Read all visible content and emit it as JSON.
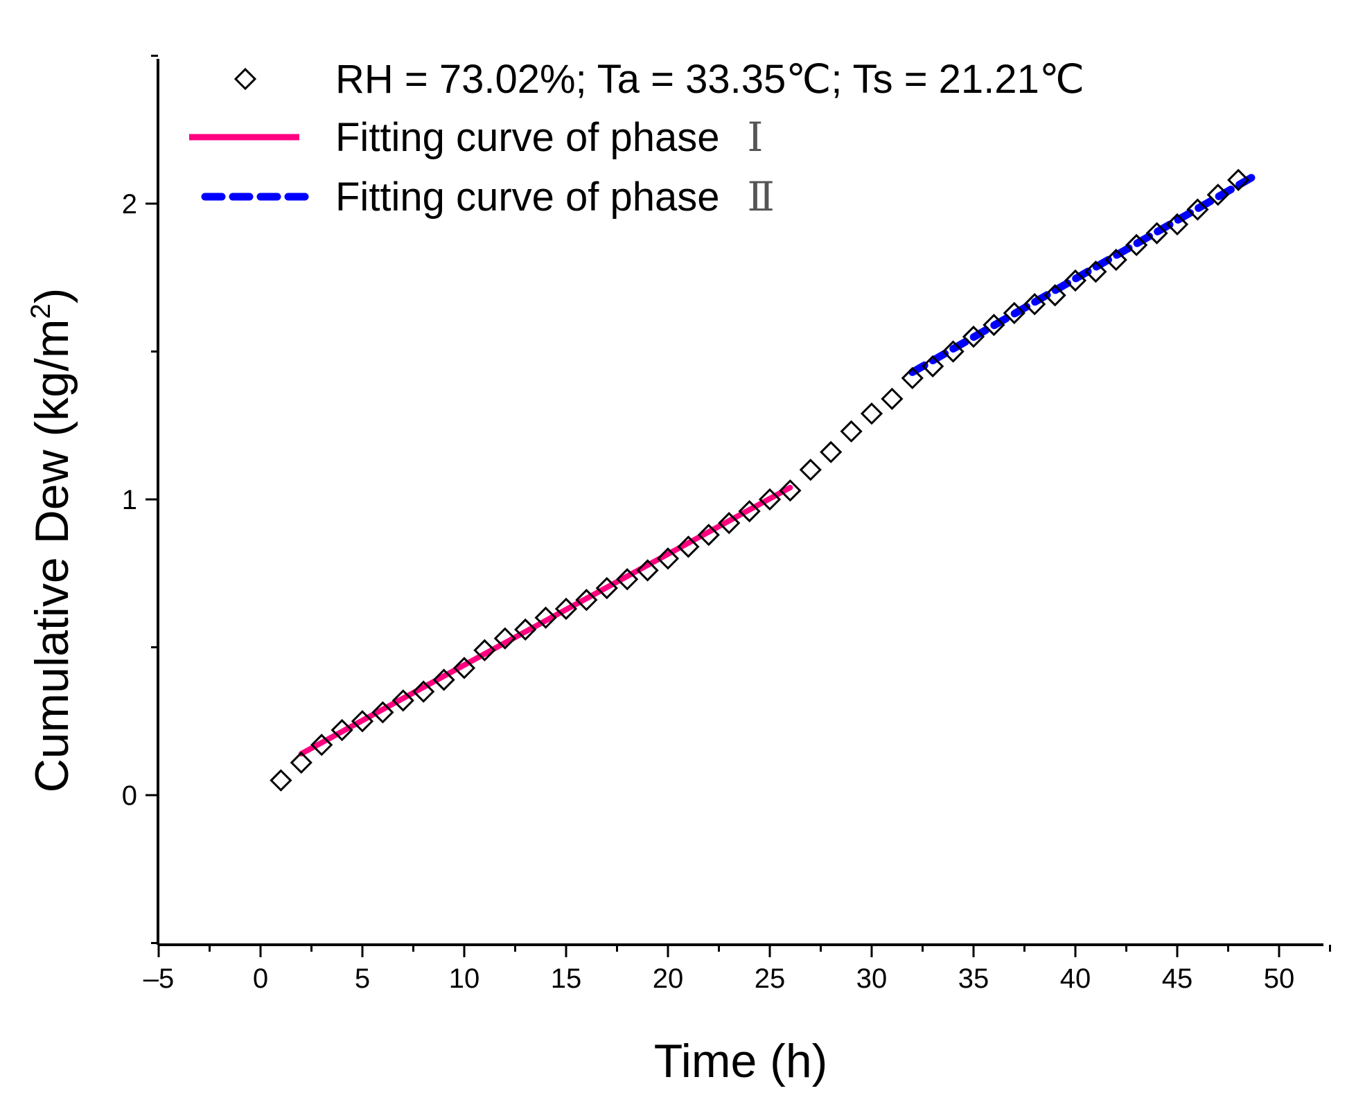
{
  "chart_data": {
    "type": "scatter",
    "title": "",
    "xlabel": "Time (h)",
    "ylabel_main": "Cumulative Dew (kg/m",
    "ylabel_sup": "2",
    "ylabel_close": ")",
    "xlim": [
      -5,
      52.5
    ],
    "ylim": [
      -0.5,
      2.5
    ],
    "x_ticks": [
      -5,
      0,
      5,
      10,
      15,
      20,
      25,
      30,
      35,
      40,
      45,
      50
    ],
    "x_tick_labels": [
      "–5",
      "0",
      "5",
      "10",
      "15",
      "20",
      "25",
      "30",
      "35",
      "40",
      "45",
      "50"
    ],
    "y_ticks": [
      0,
      1,
      2
    ],
    "y_tick_labels": [
      "0",
      "1",
      "2"
    ],
    "series": [
      {
        "name": "RH =  73.02%; Ta = 33.35℃; Ts = 21.21℃",
        "kind": "scatter",
        "marker": "diamond",
        "color": "#000000",
        "x": [
          1,
          2,
          3,
          4,
          5,
          6,
          7,
          8,
          9,
          10,
          11,
          12,
          13,
          14,
          15,
          16,
          17,
          18,
          19,
          20,
          21,
          22,
          23,
          24,
          25,
          26,
          27,
          28,
          29,
          30,
          31,
          32,
          33,
          34,
          35,
          36,
          37,
          38,
          39,
          40,
          41,
          42,
          43,
          44,
          45,
          46,
          47,
          48
        ],
        "y": [
          0.05,
          0.11,
          0.17,
          0.22,
          0.25,
          0.28,
          0.32,
          0.35,
          0.39,
          0.43,
          0.49,
          0.53,
          0.56,
          0.6,
          0.63,
          0.66,
          0.7,
          0.73,
          0.76,
          0.8,
          0.84,
          0.88,
          0.92,
          0.96,
          1.0,
          1.03,
          1.1,
          1.16,
          1.23,
          1.29,
          1.34,
          1.41,
          1.45,
          1.5,
          1.55,
          1.59,
          1.63,
          1.66,
          1.69,
          1.74,
          1.77,
          1.81,
          1.86,
          1.9,
          1.93,
          1.98,
          2.03,
          2.08
        ]
      },
      {
        "name": "Fitting curve of phase",
        "roman": "Ⅰ",
        "kind": "line",
        "style": "solid",
        "color": "#ff0080",
        "x": [
          2,
          26
        ],
        "y": [
          0.14,
          1.04
        ]
      },
      {
        "name": "Fitting curve of phase",
        "roman": "Ⅱ",
        "kind": "line",
        "style": "dashed",
        "color": "#0000ff",
        "x": [
          32,
          48.7
        ],
        "y": [
          1.43,
          2.09
        ]
      }
    ],
    "legend_position": "top-left"
  }
}
